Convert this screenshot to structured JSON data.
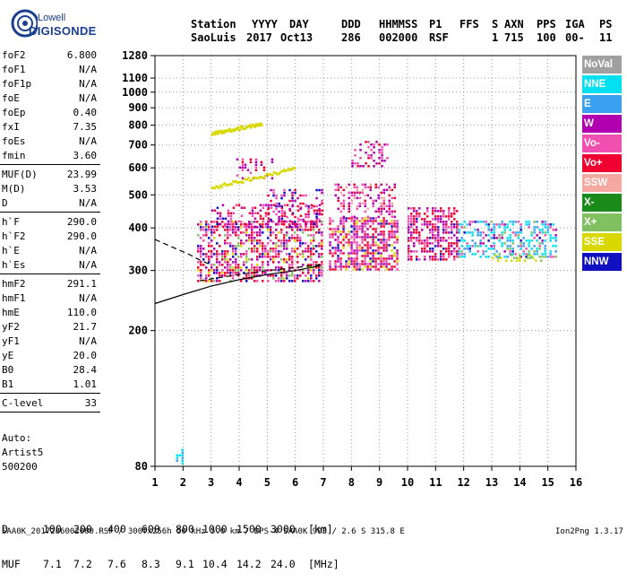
{
  "logo": {
    "top": "Lowell",
    "bottom": "DIGISONDE"
  },
  "header": {
    "labels": [
      "Station",
      "YYYY",
      "DAY",
      "DDD",
      "HHMMSS",
      "P1",
      "FFS",
      "S",
      "AXN",
      "PPS",
      "IGA",
      "PS"
    ],
    "values": [
      "SaoLuis",
      "2017",
      "Oct13",
      "286",
      "002000",
      "RSF",
      "1",
      "715",
      "100",
      "00-",
      "11"
    ]
  },
  "params": [
    {
      "name": "foF2",
      "value": "6.800"
    },
    {
      "name": "foF1",
      "value": "N/A"
    },
    {
      "name": "foF1p",
      "value": "N/A"
    },
    {
      "name": "foE",
      "value": "N/A"
    },
    {
      "name": "foEp",
      "value": "0.40"
    },
    {
      "name": "fxI",
      "value": "7.35"
    },
    {
      "name": "foEs",
      "value": "N/A"
    },
    {
      "name": "fmin",
      "value": "3.60"
    },
    {
      "name": "MUF(D)",
      "value": "23.99"
    },
    {
      "name": "M(D)",
      "value": "3.53"
    },
    {
      "name": "D",
      "value": "N/A"
    },
    {
      "name": "h`F",
      "value": "290.0"
    },
    {
      "name": "h`F2",
      "value": "290.0"
    },
    {
      "name": "h`E",
      "value": "N/A"
    },
    {
      "name": "h`Es",
      "value": "N/A"
    },
    {
      "name": "hmF2",
      "value": "291.1"
    },
    {
      "name": "hmF1",
      "value": "N/A"
    },
    {
      "name": "hmE",
      "value": "110.0"
    },
    {
      "name": "yF2",
      "value": "21.7"
    },
    {
      "name": "yF1",
      "value": "N/A"
    },
    {
      "name": "yE",
      "value": "20.0"
    },
    {
      "name": "B0",
      "value": "28.4"
    },
    {
      "name": "B1",
      "value": "1.01"
    },
    {
      "name": "C-level",
      "value": "33"
    }
  ],
  "auto": {
    "line1": "Auto:",
    "line2": "Artist5",
    "line3": "500200"
  },
  "legend": [
    {
      "label": "NoVal",
      "color": "#a0a0a0"
    },
    {
      "label": "NNE",
      "color": "#00e0f0"
    },
    {
      "label": "E",
      "color": "#3aa0f0"
    },
    {
      "label": "W",
      "color": "#b000b0"
    },
    {
      "label": "Vo-",
      "color": "#f050b0"
    },
    {
      "label": "Vo+",
      "color": "#f00030"
    },
    {
      "label": "SSW",
      "color": "#f4a8a0"
    },
    {
      "label": "X-",
      "color": "#1a8a1a"
    },
    {
      "label": "X+",
      "color": "#80c060"
    },
    {
      "label": "SSE",
      "color": "#d8d800"
    },
    {
      "label": "NNW",
      "color": "#1010c0"
    }
  ],
  "bottom": {
    "d_label": "D",
    "d_values": [
      "100",
      "200",
      "400",
      "600",
      "800",
      "1000",
      "1500",
      "3000"
    ],
    "d_unit": "[km]",
    "muf_label": "MUF",
    "muf_values": [
      "7.1",
      "7.2",
      "7.6",
      "8.3",
      "9.1",
      "10.4",
      "14.2",
      "24.0"
    ],
    "muf_unit": "[MHz]"
  },
  "footer": {
    "left": "SAA0K_2017286002000.RSF / 300fx256h 50 kHz 5.0 km / DPS-4 SAA0K 903 / 2.6 S 315.8 E",
    "right": "Ion2Png 1.3.17"
  },
  "chart_data": {
    "type": "scatter",
    "x_range": [
      1,
      16
    ],
    "x_ticks": [
      1,
      2,
      3,
      4,
      5,
      6,
      7,
      8,
      9,
      10,
      11,
      12,
      13,
      14,
      15,
      16
    ],
    "y_range": [
      80,
      1280
    ],
    "y_ticks": [
      80,
      200,
      300,
      400,
      500,
      600,
      700,
      800,
      900,
      1000,
      1100,
      1280
    ],
    "y_scale": "log",
    "grid": "dotted",
    "legend_placement": "right",
    "clusters": [
      {
        "x": [
          2.5,
          7.0
        ],
        "y": [
          280,
          420
        ],
        "density": 0.55,
        "color_weights": {
          "Vo+": 4,
          "Vo-": 3,
          "W": 2,
          "NNW": 1,
          "X+": 1,
          "SSE": 1
        }
      },
      {
        "x": [
          3.0,
          7.0
        ],
        "y": [
          400,
          470
        ],
        "density": 0.35,
        "color_weights": {
          "Vo+": 3,
          "Vo-": 3,
          "W": 3,
          "NNW": 1
        }
      },
      {
        "x": [
          5.0,
          7.0
        ],
        "y": [
          420,
          520
        ],
        "density": 0.3,
        "color_weights": {
          "W": 3,
          "Vo-": 3,
          "Vo+": 2,
          "NNW": 1
        }
      },
      {
        "x": [
          7.2,
          9.6
        ],
        "y": [
          300,
          430
        ],
        "density": 0.65,
        "color_weights": {
          "Vo+": 4,
          "Vo-": 3,
          "W": 3,
          "NNW": 1,
          "SSE": 1
        }
      },
      {
        "x": [
          7.4,
          9.6
        ],
        "y": [
          430,
          540
        ],
        "density": 0.4,
        "color_weights": {
          "Vo-": 3,
          "W": 3,
          "Vo+": 2,
          "SSW": 1
        }
      },
      {
        "x": [
          10.0,
          11.8
        ],
        "y": [
          320,
          460
        ],
        "density": 0.6,
        "color_weights": {
          "Vo+": 4,
          "Vo-": 3,
          "W": 3,
          "NNW": 1
        }
      },
      {
        "x": [
          11.8,
          15.3
        ],
        "y": [
          330,
          420
        ],
        "density": 0.5,
        "color_weights": {
          "NNE": 5,
          "E": 3,
          "Vo-": 2,
          "W": 1,
          "NNW": 1,
          "X+": 1
        }
      },
      {
        "x": [
          13.0,
          14.8
        ],
        "y": [
          320,
          335
        ],
        "density": 0.4,
        "color_weights": {
          "SSE": 3,
          "X+": 2
        }
      },
      {
        "x": [
          3.8,
          5.2
        ],
        "y": [
          560,
          640
        ],
        "density": 0.25,
        "color_weights": {
          "W": 3,
          "Vo-": 2,
          "Vo+": 1
        }
      },
      {
        "x": [
          8.0,
          9.3
        ],
        "y": [
          610,
          720
        ],
        "density": 0.3,
        "color_weights": {
          "W": 3,
          "Vo-": 3,
          "Vo+": 1
        }
      },
      {
        "x": [
          1.75,
          2.0
        ],
        "y": [
          82,
          90
        ],
        "density": 0.6,
        "color_weights": {
          "NNE": 3,
          "E": 2
        }
      }
    ],
    "trails": [
      {
        "from": [
          3.0,
          528
        ],
        "to": [
          6.0,
          600
        ],
        "color": "SSE"
      },
      {
        "from": [
          3.0,
          760
        ],
        "to": [
          4.8,
          815
        ],
        "color": "SSE"
      }
    ],
    "curves": [
      {
        "style": "solid",
        "points": [
          [
            1,
            240
          ],
          [
            2,
            255
          ],
          [
            3,
            270
          ],
          [
            4,
            282
          ],
          [
            5,
            292
          ],
          [
            6,
            300
          ],
          [
            6.9,
            310
          ]
        ]
      },
      {
        "style": "dashed",
        "points": [
          [
            1,
            370
          ],
          [
            1.6,
            352
          ],
          [
            2.2,
            335
          ],
          [
            2.6,
            322
          ],
          [
            3.0,
            312
          ]
        ]
      },
      {
        "style": "dashed",
        "points": [
          [
            2.6,
            280
          ],
          [
            4,
            292
          ],
          [
            5,
            300
          ],
          [
            6,
            306
          ],
          [
            6.9,
            312
          ]
        ]
      }
    ]
  }
}
